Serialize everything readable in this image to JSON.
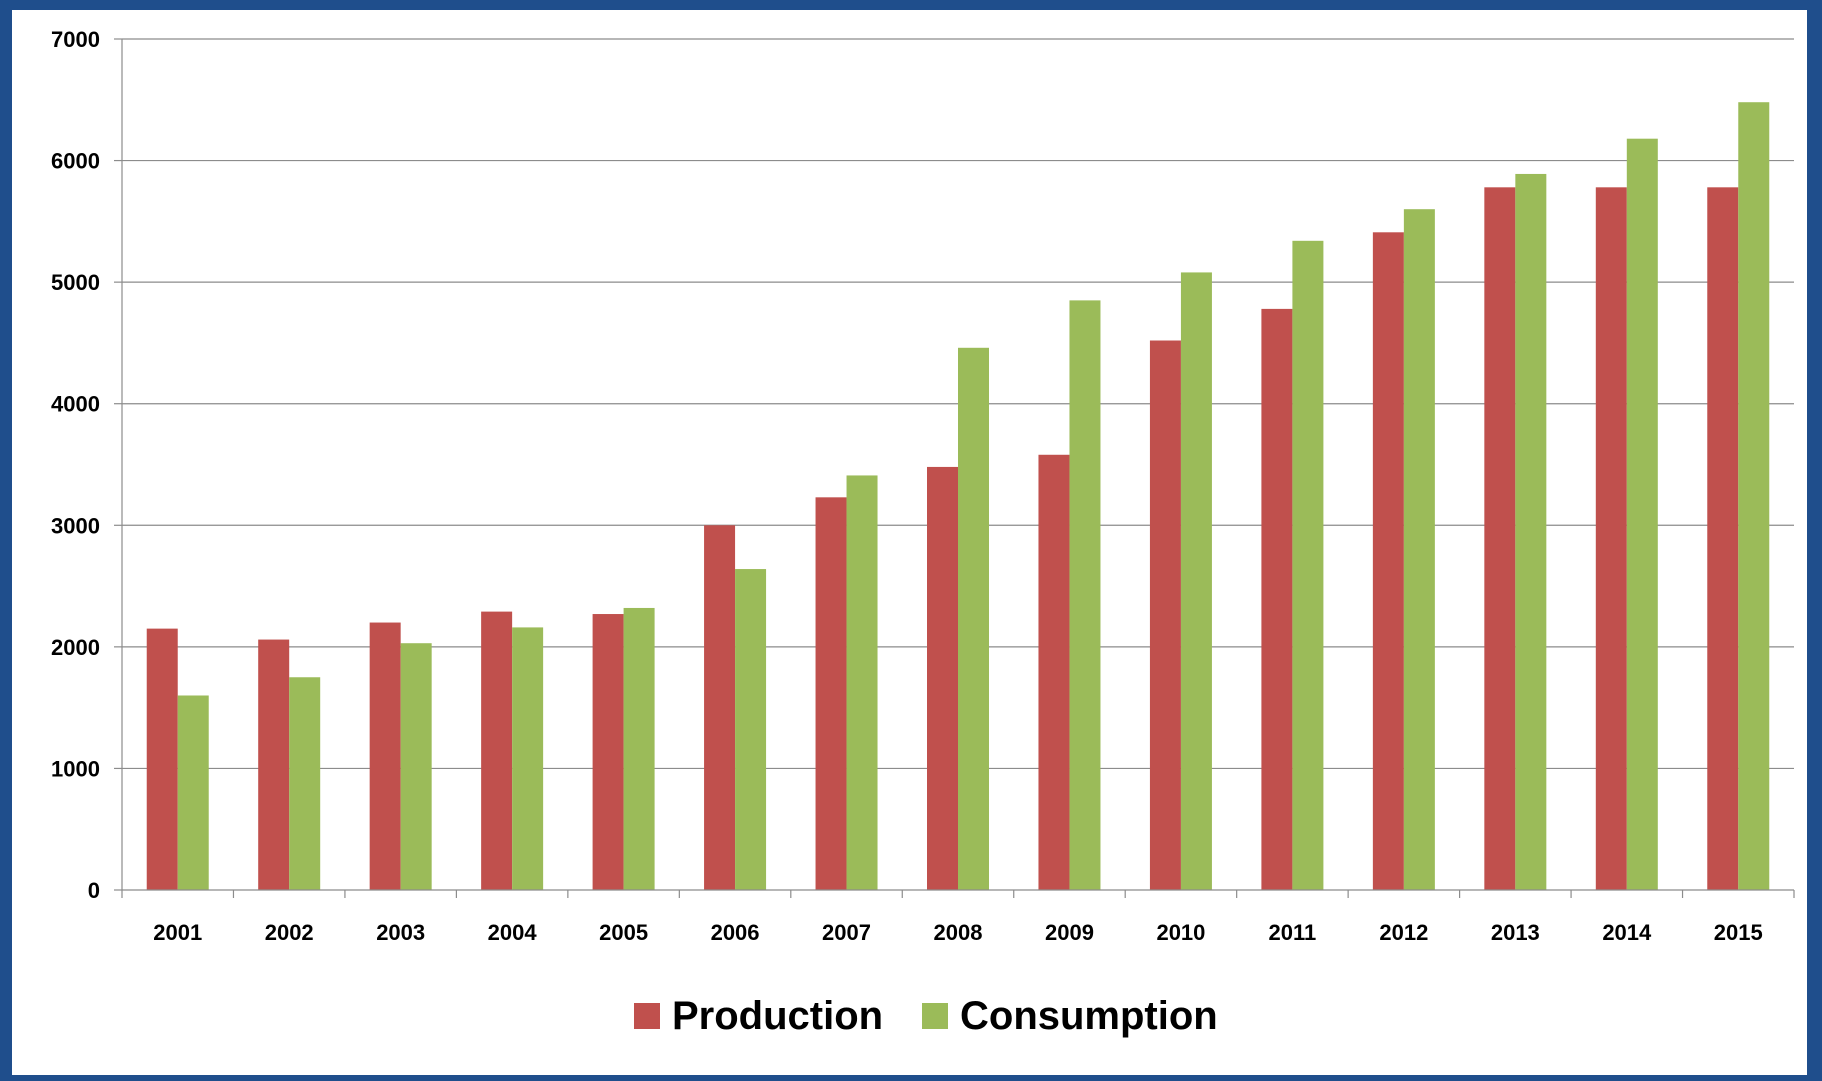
{
  "chart_data": {
    "type": "bar",
    "categories": [
      "2001",
      "2002",
      "2003",
      "2004",
      "2005",
      "2006",
      "2007",
      "2008",
      "2009",
      "2010",
      "2011",
      "2012",
      "2013",
      "2014",
      "2015"
    ],
    "series": [
      {
        "name": "Production",
        "color": "#c0504d",
        "values": [
          2150,
          2060,
          2200,
          2290,
          2270,
          3000,
          3230,
          3480,
          3580,
          4520,
          4780,
          5410,
          5780,
          5780,
          5780
        ]
      },
      {
        "name": "Consumption",
        "color": "#9bbb59",
        "values": [
          1600,
          1750,
          2030,
          2160,
          2320,
          2640,
          3410,
          4460,
          4850,
          5080,
          5340,
          5600,
          5890,
          6180,
          6480
        ]
      }
    ],
    "yticks": [
      "0",
      "1000",
      "2000",
      "3000",
      "4000",
      "5000",
      "6000",
      "7000"
    ],
    "ylim": [
      0,
      7000
    ],
    "grid": true,
    "legend_position": "bottom"
  }
}
